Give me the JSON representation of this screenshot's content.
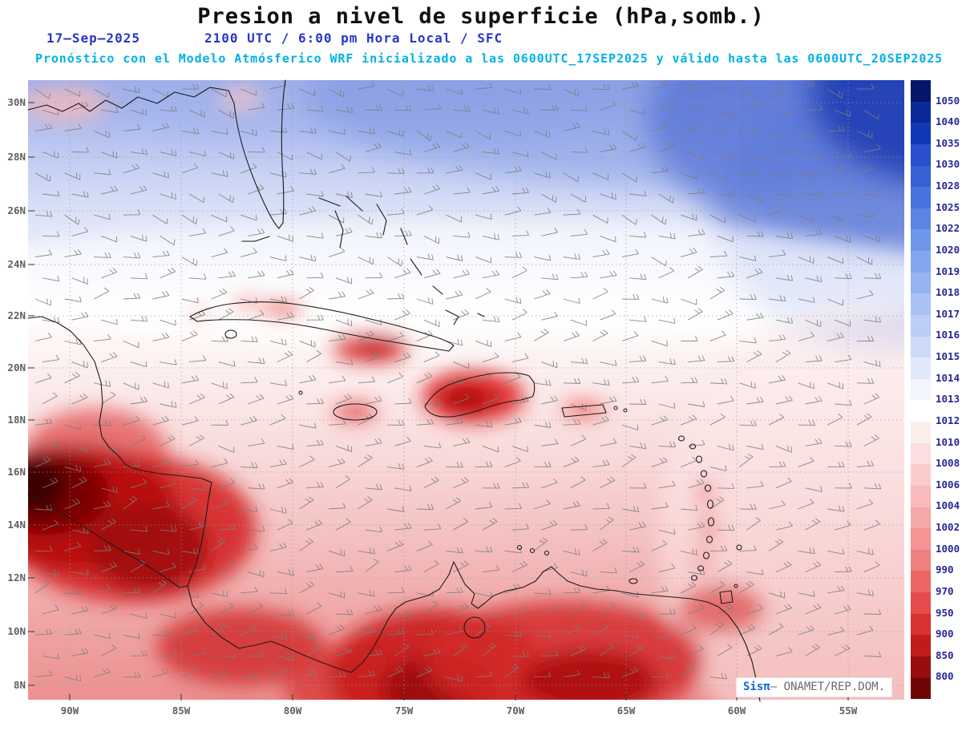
{
  "header": {
    "title": "Presion a nivel de superficie (hPa,somb.)",
    "date": "17–Sep–2025",
    "time_line": "2100 UTC / 6:00 pm Hora Local / SFC",
    "forecast_line": "Pronóstico con el Modelo Atmósferico WRF inicializado a las 0600UTC_17SEP2025 y válido hasta las 0600UTC_20SEP2025"
  },
  "map": {
    "lat_labels": [
      "30N",
      "28N",
      "26N",
      "24N",
      "22N",
      "20N",
      "18N",
      "16N",
      "14N",
      "12N",
      "10N",
      "8N"
    ],
    "lon_labels": [
      "90W",
      "85W",
      "80W",
      "75W",
      "70W",
      "65W",
      "60W",
      "55W"
    ]
  },
  "colorbar": {
    "labels": [
      "1050",
      "1040",
      "1035",
      "1030",
      "1028",
      "1025",
      "1022",
      "1020",
      "1019",
      "1018",
      "1017",
      "1016",
      "1015",
      "1014",
      "1013",
      "1012",
      "1010",
      "1008",
      "1006",
      "1004",
      "1002",
      "1000",
      "990",
      "970",
      "950",
      "900",
      "850",
      "800"
    ],
    "cell_colors": [
      "#04156a",
      "#0a2a9c",
      "#1238b8",
      "#2a4ecc",
      "#3a60d6",
      "#4a72e0",
      "#5c84e6",
      "#7096ec",
      "#84a6f0",
      "#96b4f2",
      "#a8c2f4",
      "#bacef6",
      "#ccdaf8",
      "#e0e8fb",
      "#f2f4fe",
      "#ffffff",
      "#fdeeee",
      "#fcdede",
      "#facccc",
      "#f8baba",
      "#f6a8a8",
      "#f49494",
      "#f08080",
      "#ec6666",
      "#e64c4c",
      "#d83232",
      "#c01c1c",
      "#980e0e",
      "#6e0404"
    ],
    "label_color": "#26269a"
  },
  "watermark": {
    "brand": "Sisπ",
    "source": "– ONAMET/REP.DOM."
  },
  "chart_data": {
    "type": "heatmap",
    "title": "Presion a nivel de superficie (hPa,somb.)",
    "variable": "surface pressure with wind barbs",
    "units": "hPa",
    "colorbar_levels": [
      1050,
      1040,
      1035,
      1030,
      1028,
      1025,
      1022,
      1020,
      1019,
      1018,
      1017,
      1016,
      1015,
      1014,
      1013,
      1012,
      1010,
      1008,
      1006,
      1004,
      1002,
      1000,
      990,
      970,
      950,
      900,
      850,
      800
    ],
    "lat_ticks": [
      "30N",
      "28N",
      "26N",
      "24N",
      "22N",
      "20N",
      "18N",
      "16N",
      "14N",
      "12N",
      "10N",
      "8N"
    ],
    "lon_ticks": [
      "90W",
      "85W",
      "80W",
      "75W",
      "70W",
      "65W",
      "60W",
      "55W"
    ],
    "legend_position": "right",
    "grid": true,
    "notes": "High pressure (blue) over northwest Atlantic toward top-right; near 1013-1016 band across 22N-26N; lower pressure (red shading) over Central America, Hispaniola, eastern Cuba, Jamaica, Puerto Rico, Lesser Antilles and northern South America"
  }
}
